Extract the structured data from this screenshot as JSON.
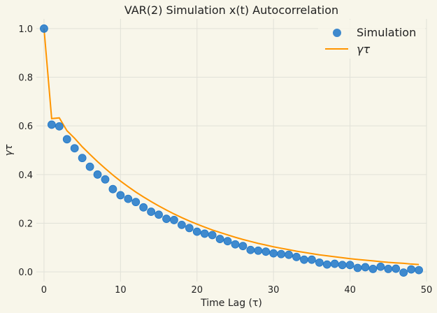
{
  "chart_data": {
    "type": "scatter",
    "title": "VAR(2) Simulation x(t) Autocorrelation",
    "xlabel": "Time Lag (τ)",
    "ylabel": "γτ",
    "xlim": [
      -1,
      50
    ],
    "ylim": [
      -0.04,
      1.04
    ],
    "x_ticks": [
      0,
      10,
      20,
      30,
      40,
      50
    ],
    "y_ticks": [
      0.0,
      0.2,
      0.4,
      0.6,
      0.8,
      1.0
    ],
    "x_tick_labels": [
      "0",
      "10",
      "20",
      "30",
      "40",
      "50"
    ],
    "y_tick_labels": [
      "0.0",
      "0.2",
      "0.4",
      "0.6",
      "0.8",
      "1.0"
    ],
    "grid": true,
    "legend_position": "top-right",
    "series": [
      {
        "name": "Simulation",
        "type": "scatter",
        "color": "#1f77c9",
        "x": [
          0,
          1,
          2,
          3,
          4,
          5,
          6,
          7,
          8,
          9,
          10,
          11,
          12,
          13,
          14,
          15,
          16,
          17,
          18,
          19,
          20,
          21,
          22,
          23,
          24,
          25,
          26,
          27,
          28,
          29,
          30,
          31,
          32,
          33,
          34,
          35,
          36,
          37,
          38,
          39,
          40,
          41,
          42,
          43,
          44,
          45,
          46,
          47,
          48,
          49
        ],
        "y": [
          1.0,
          0.605,
          0.598,
          0.545,
          0.508,
          0.468,
          0.432,
          0.4,
          0.38,
          0.34,
          0.315,
          0.3,
          0.287,
          0.265,
          0.247,
          0.235,
          0.218,
          0.213,
          0.193,
          0.18,
          0.165,
          0.157,
          0.151,
          0.135,
          0.126,
          0.113,
          0.106,
          0.09,
          0.087,
          0.083,
          0.076,
          0.073,
          0.07,
          0.061,
          0.05,
          0.05,
          0.038,
          0.03,
          0.033,
          0.028,
          0.028,
          0.016,
          0.019,
          0.012,
          0.021,
          0.012,
          0.013,
          -0.003,
          0.01,
          0.007
        ]
      },
      {
        "name": "γτ",
        "type": "line",
        "color": "#ff9500",
        "x": [
          0,
          1,
          2,
          3,
          4,
          5,
          6,
          7,
          8,
          9,
          10,
          11,
          12,
          13,
          14,
          15,
          16,
          17,
          18,
          19,
          20,
          21,
          22,
          23,
          24,
          25,
          26,
          27,
          28,
          29,
          30,
          31,
          32,
          33,
          34,
          35,
          36,
          37,
          38,
          39,
          40,
          41,
          42,
          43,
          44,
          45,
          46,
          47,
          48,
          49
        ],
        "y": [
          1.0,
          0.63,
          0.633,
          0.58,
          0.549,
          0.514,
          0.483,
          0.453,
          0.425,
          0.398,
          0.373,
          0.35,
          0.328,
          0.308,
          0.289,
          0.271,
          0.254,
          0.238,
          0.223,
          0.209,
          0.196,
          0.184,
          0.172,
          0.162,
          0.152,
          0.142,
          0.133,
          0.125,
          0.117,
          0.11,
          0.103,
          0.097,
          0.091,
          0.085,
          0.08,
          0.075,
          0.07,
          0.066,
          0.062,
          0.058,
          0.054,
          0.051,
          0.048,
          0.045,
          0.042,
          0.039,
          0.037,
          0.035,
          0.032,
          0.03
        ]
      }
    ]
  }
}
